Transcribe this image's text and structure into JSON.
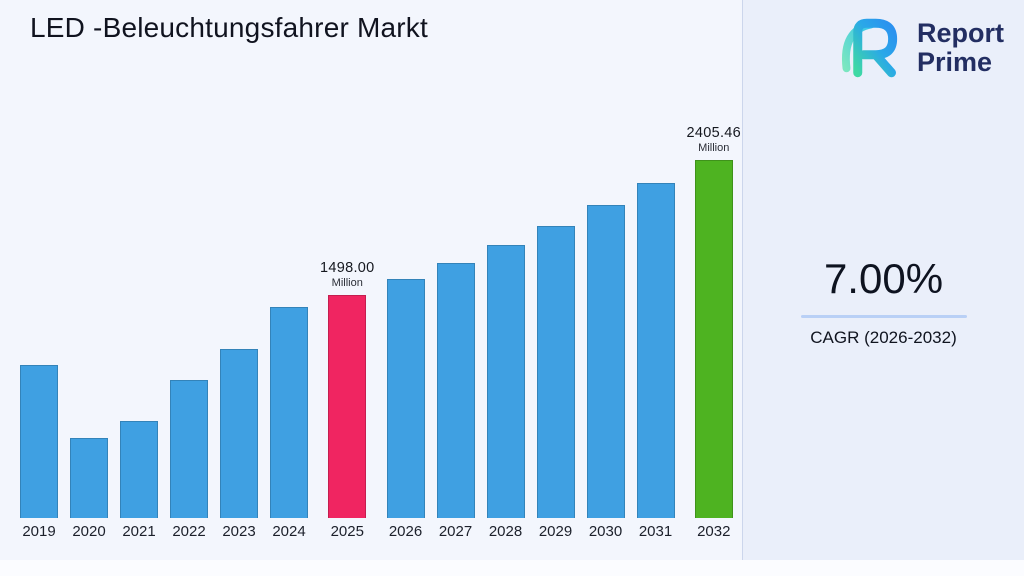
{
  "page": {
    "title": "LED -Beleuchtungsfahrer Markt"
  },
  "brand": {
    "logo_icon": "report-prime-mark",
    "name_line1": "Report",
    "name_line2": "Prime",
    "colors": {
      "navy": "#232e62",
      "blue": "#2b8ff0",
      "teal": "#3fd9a4"
    }
  },
  "cagr": {
    "value": "7.00%",
    "label": "CAGR (2026-2032)",
    "underline_color": "#b9d0f6"
  },
  "chart_data": {
    "type": "bar",
    "title": "LED -Beleuchtungsfahrer Markt",
    "categories": [
      "2019",
      "2020",
      "2021",
      "2022",
      "2023",
      "2024",
      "2025",
      "2026",
      "2027",
      "2028",
      "2029",
      "2030",
      "2031",
      "2032"
    ],
    "values": [
      1030,
      535,
      650,
      930,
      1135,
      1420,
      1498.0,
      1602.86,
      1715.06,
      1835.11,
      1963.57,
      2101.02,
      2248.09,
      2405.46
    ],
    "unit": "Million",
    "xlabel": "",
    "ylabel": "",
    "ylim": [
      0,
      2500
    ],
    "grid": false,
    "legend": false,
    "colors": {
      "default": "#3fa0e2",
      "highlight_2025": "#f02561",
      "highlight_2032": "#4eb321"
    },
    "annotations": [
      {
        "category": "2025",
        "value_label": "1498.00",
        "unit_label": "Million",
        "color": "#f02561"
      },
      {
        "category": "2032",
        "value_label": "2405.46",
        "unit_label": "Million",
        "color": "#4eb321"
      }
    ]
  }
}
